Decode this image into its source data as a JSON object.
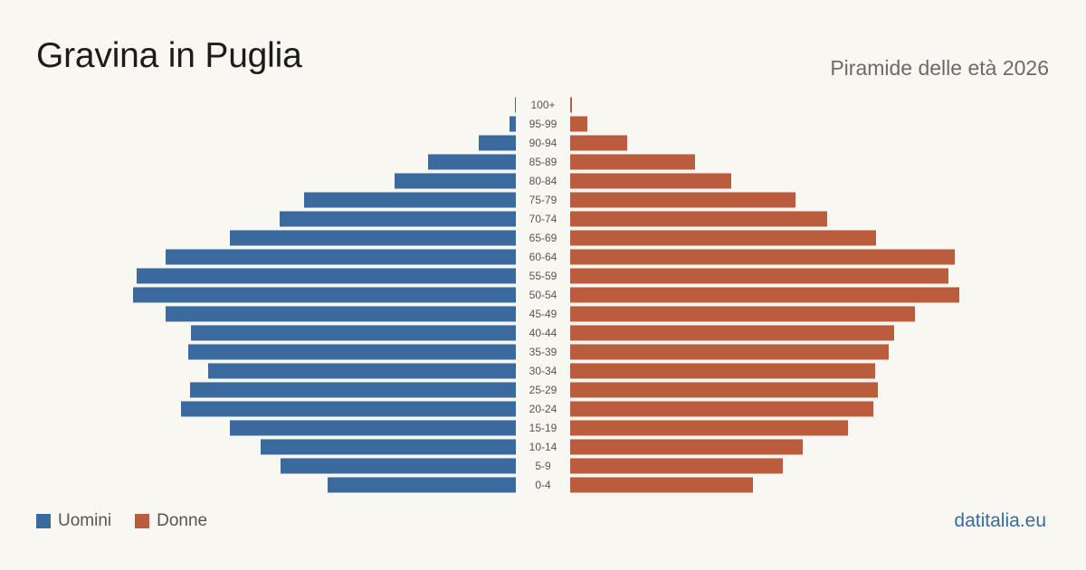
{
  "title": "Gravina in Puglia",
  "subtitle": "Piramide delle età 2026",
  "source": "datitalia.eu",
  "legend": {
    "men": "Uomini",
    "women": "Donne"
  },
  "colors": {
    "men": "#3a6a9e",
    "women": "#b95d3c",
    "background": "#f9f7f2"
  },
  "chart_data": {
    "type": "bar",
    "orientation": "horizontal-pyramid",
    "title": "Gravina in Puglia",
    "subtitle": "Piramide delle età 2026",
    "categories": [
      "100+",
      "95-99",
      "90-94",
      "85-89",
      "80-84",
      "75-79",
      "70-74",
      "65-69",
      "60-64",
      "55-59",
      "50-54",
      "45-49",
      "40-44",
      "35-39",
      "30-34",
      "25-29",
      "20-24",
      "15-19",
      "10-14",
      "5-9",
      "0-4"
    ],
    "series": [
      {
        "name": "Uomini",
        "side": "left",
        "values": [
          2,
          14,
          82,
          194,
          268,
          468,
          522,
          632,
          774,
          838,
          846,
          774,
          718,
          724,
          680,
          720,
          740,
          632,
          564,
          520,
          416
        ]
      },
      {
        "name": "Donne",
        "side": "right",
        "values": [
          4,
          38,
          126,
          276,
          356,
          498,
          568,
          676,
          850,
          836,
          860,
          762,
          716,
          704,
          674,
          680,
          670,
          614,
          514,
          470,
          404
        ]
      }
    ],
    "max_value": 860,
    "legend_position": "bottom-left",
    "grid": false
  }
}
